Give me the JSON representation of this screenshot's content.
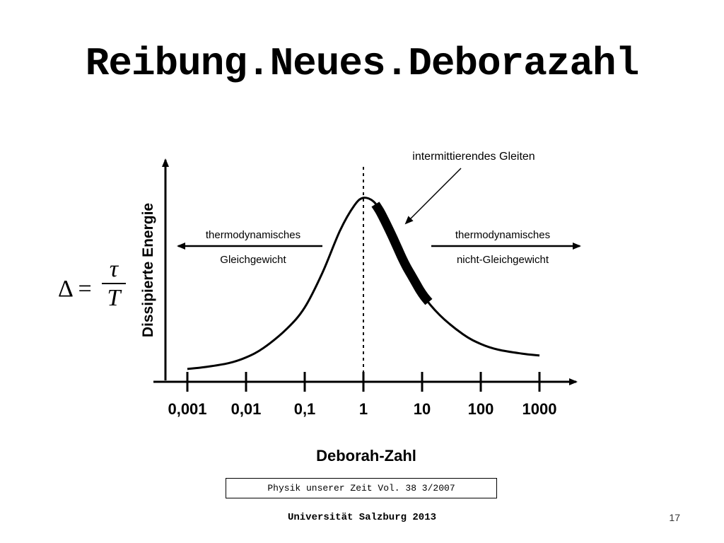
{
  "slide": {
    "title": "Reibung.Neues.Deborazahl",
    "footer": "Universität Salzburg 2013",
    "page_number": "17",
    "source": "Physik unserer Zeit Vol. 38 3/2007"
  },
  "formula": {
    "lhs": "Δ =",
    "numerator": "τ",
    "denominator": "T"
  },
  "chart_data": {
    "type": "line",
    "xlabel": "Deborah-Zahl",
    "ylabel": "Dissipierte Energie",
    "x_scale": "log",
    "x_ticks": [
      "0,001",
      "0,01",
      "0,1",
      "1",
      "10",
      "100",
      "1000"
    ],
    "x_tick_values": [
      0.001,
      0.01,
      0.1,
      1,
      10,
      100,
      1000
    ],
    "ylim": [
      0,
      1
    ],
    "vertical_line": {
      "x": 1,
      "style": "dotted"
    },
    "series": [
      {
        "x": [
          0.001,
          0.002,
          0.005,
          0.01,
          0.02,
          0.05,
          0.1,
          0.2,
          0.4,
          0.7,
          1,
          1.5,
          2,
          3,
          5,
          10,
          20,
          50,
          100,
          200,
          500,
          1000
        ],
        "y": [
          0.03,
          0.04,
          0.06,
          0.09,
          0.14,
          0.24,
          0.35,
          0.53,
          0.75,
          0.88,
          0.92,
          0.9,
          0.84,
          0.73,
          0.58,
          0.42,
          0.31,
          0.21,
          0.16,
          0.13,
          0.11,
          0.1
        ]
      }
    ],
    "highlight_range": {
      "x_start": 1.6,
      "x_end": 13
    },
    "annotations": {
      "intermittent": "intermittierendes Gleiten",
      "left_regime_line1": "thermodynamisches",
      "left_regime_line2": "Gleichgewicht",
      "right_regime_line1": "thermodynamisches",
      "right_regime_line2": "nicht-Gleichgewicht"
    }
  }
}
